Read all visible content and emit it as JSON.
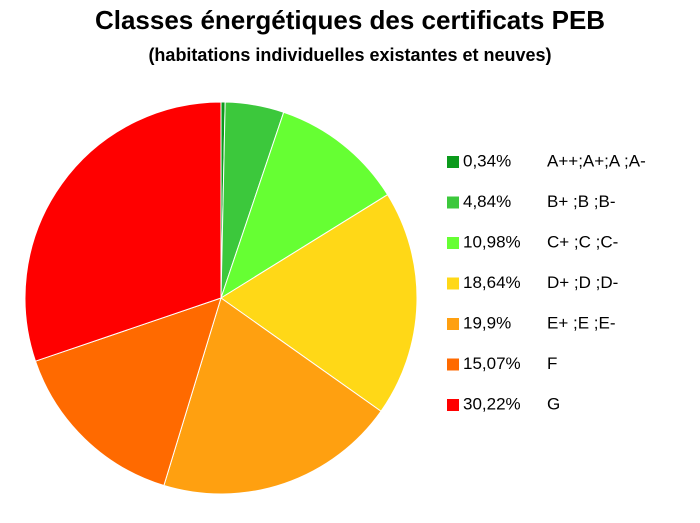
{
  "chart_data": {
    "type": "pie",
    "title": "Classes énergétiques des certificats PEB",
    "subtitle": "(habitations individuelles existantes et neuves)",
    "categories": [
      "A++;A+;A ;A-",
      "B+ ;B ;B-",
      "C+ ;C ;C-",
      "D+ ;D ;D-",
      "E+ ;E ;E-",
      "F",
      "G"
    ],
    "values": [
      0.34,
      4.84,
      10.98,
      18.64,
      19.9,
      15.07,
      30.22
    ],
    "value_labels": [
      "0,34%",
      "4,84%",
      "10,98%",
      "18,64%",
      "19,9%",
      "15,07%",
      "30,22%"
    ],
    "colors": [
      "#0b9a1c",
      "#3cc83c",
      "#66ff33",
      "#ffd817",
      "#ffa010",
      "#ff6a00",
      "#ff0000"
    ],
    "legend": "right"
  }
}
